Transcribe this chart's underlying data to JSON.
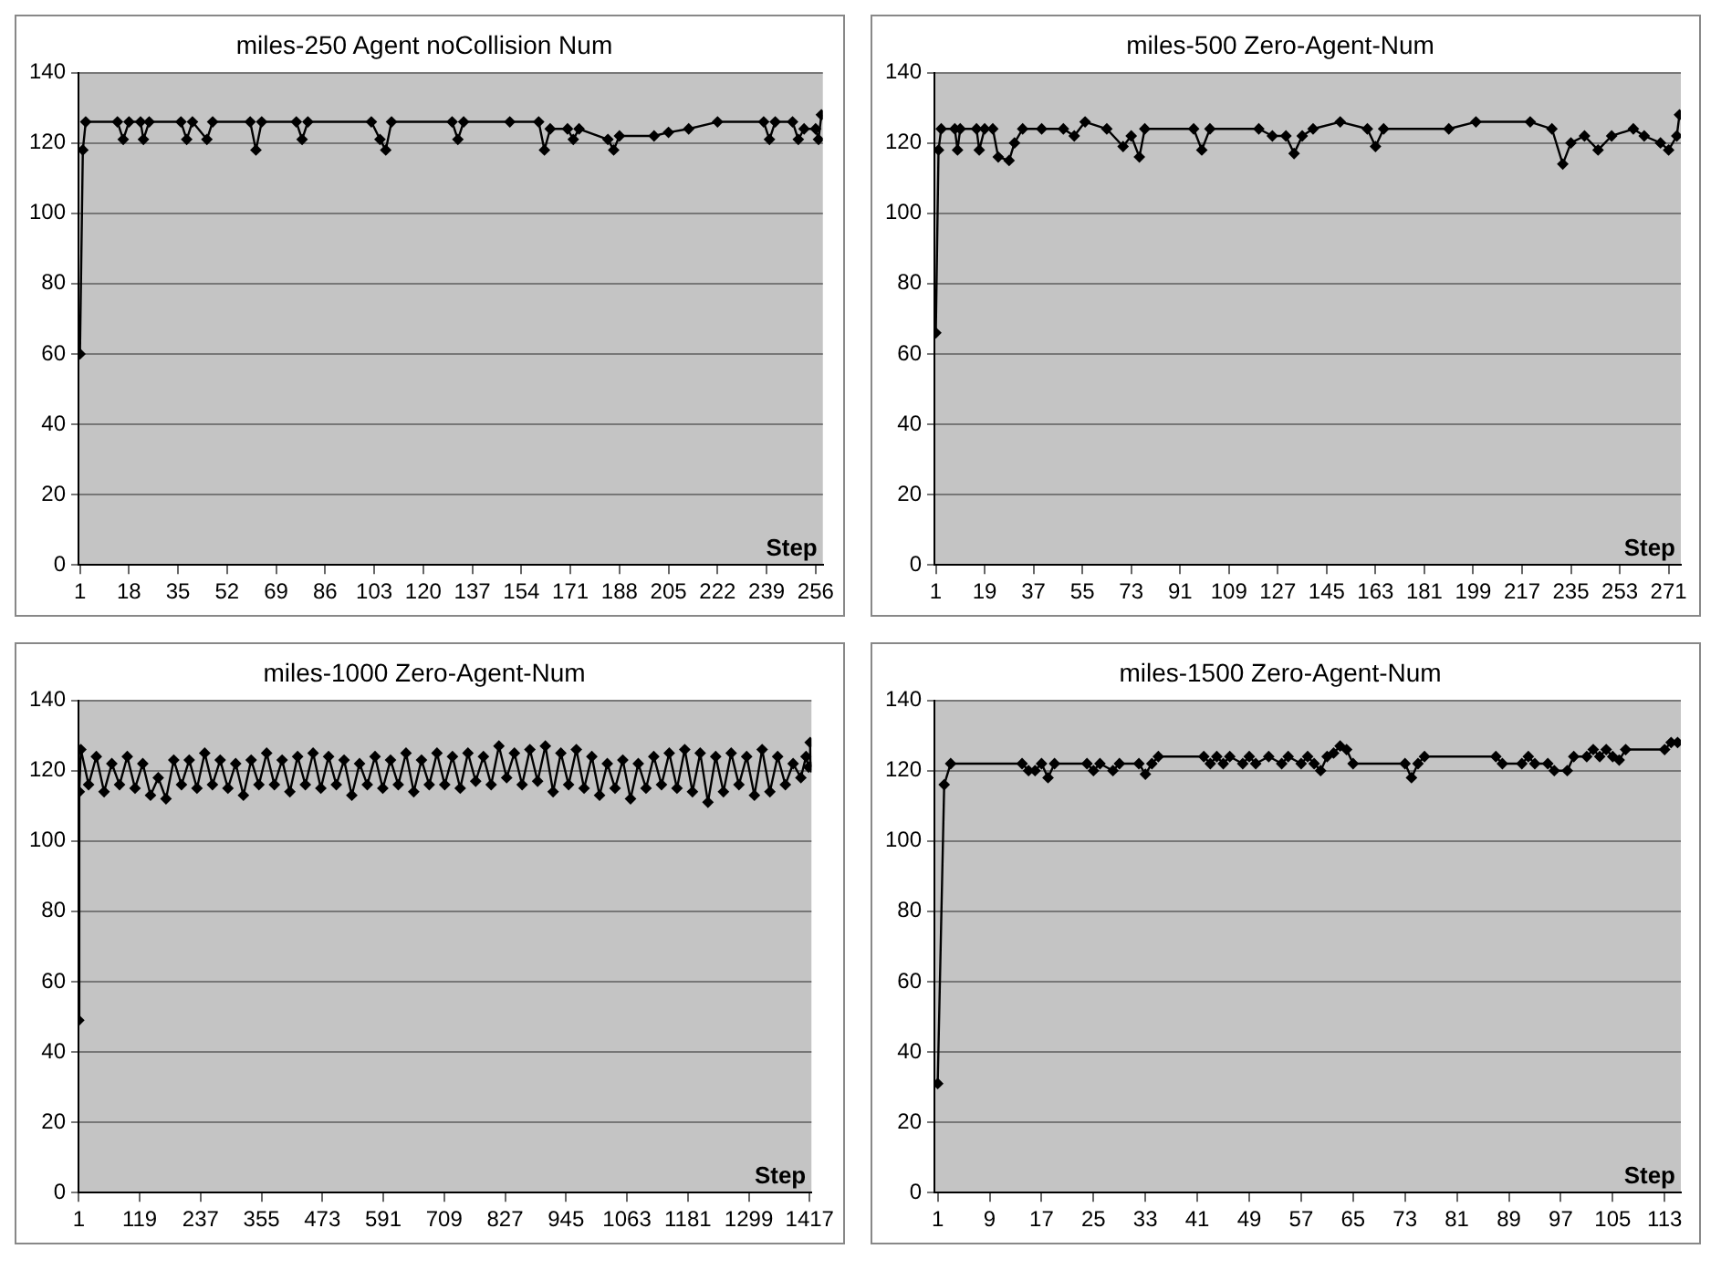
{
  "chart_data": [
    {
      "type": "line",
      "title": "miles-250 Agent noCollision Num",
      "xlabel": "Step",
      "marker": "diamond",
      "grid": "y",
      "legend": false,
      "xlim": [
        0.5,
        258.5
      ],
      "xticks": [
        1,
        18,
        35,
        52,
        69,
        86,
        103,
        120,
        137,
        154,
        171,
        188,
        205,
        222,
        239,
        256
      ],
      "ylim": [
        0,
        140
      ],
      "yticks": [
        0,
        20,
        40,
        60,
        80,
        100,
        120,
        140
      ],
      "series": [
        {
          "color": "#000000",
          "x": [
            1,
            2,
            3,
            14,
            16,
            18,
            22,
            23,
            25,
            36,
            38,
            40,
            45,
            47,
            60,
            62,
            64,
            76,
            78,
            80,
            102,
            105,
            107,
            109,
            130,
            132,
            134,
            150,
            160,
            162,
            164,
            170,
            172,
            174,
            184,
            186,
            188,
            200,
            205,
            212,
            222,
            238,
            240,
            242,
            248,
            250,
            252,
            256,
            257,
            258
          ],
          "values": [
            60,
            118,
            126,
            126,
            121,
            126,
            126,
            121,
            126,
            126,
            121,
            126,
            121,
            126,
            126,
            118,
            126,
            126,
            121,
            126,
            126,
            121,
            118,
            126,
            126,
            121,
            126,
            126,
            126,
            118,
            124,
            124,
            121,
            124,
            121,
            118,
            122,
            122,
            123,
            124,
            126,
            126,
            121,
            126,
            126,
            121,
            124,
            124,
            121,
            128
          ]
        }
      ]
    },
    {
      "type": "line",
      "title": "miles-500 Zero-Agent-Num",
      "xlabel": "Step",
      "marker": "diamond",
      "grid": "y",
      "legend": false,
      "xlim": [
        0.5,
        275.5
      ],
      "xticks": [
        1,
        19,
        37,
        55,
        73,
        91,
        109,
        127,
        145,
        163,
        181,
        199,
        217,
        235,
        253,
        271
      ],
      "ylim": [
        0,
        140
      ],
      "yticks": [
        0,
        20,
        40,
        60,
        80,
        100,
        120,
        140
      ],
      "series": [
        {
          "color": "#000000",
          "x": [
            1,
            2,
            3,
            8,
            9,
            10,
            16,
            17,
            19,
            22,
            24,
            28,
            30,
            33,
            40,
            48,
            52,
            56,
            64,
            70,
            73,
            76,
            78,
            96,
            99,
            102,
            120,
            125,
            130,
            133,
            136,
            140,
            150,
            160,
            163,
            166,
            190,
            200,
            220,
            228,
            232,
            235,
            240,
            245,
            250,
            258,
            262,
            268,
            271,
            274,
            275
          ],
          "values": [
            66,
            118,
            124,
            124,
            118,
            124,
            124,
            118,
            124,
            124,
            116,
            115,
            120,
            124,
            124,
            124,
            122,
            126,
            124,
            119,
            122,
            116,
            124,
            124,
            118,
            124,
            124,
            122,
            122,
            117,
            122,
            124,
            126,
            124,
            119,
            124,
            124,
            126,
            126,
            124,
            114,
            120,
            122,
            118,
            122,
            124,
            122,
            120,
            118,
            122,
            128
          ]
        }
      ]
    },
    {
      "type": "line",
      "title": "miles-1000 Zero-Agent-Num",
      "xlabel": "Step",
      "marker": "diamond",
      "grid": "y",
      "legend": false,
      "xlim": [
        0.5,
        1420.5
      ],
      "xticks": [
        1,
        119,
        237,
        355,
        473,
        591,
        709,
        827,
        945,
        1063,
        1181,
        1299,
        1417
      ],
      "ylim": [
        0,
        140
      ],
      "yticks": [
        0,
        20,
        40,
        60,
        80,
        100,
        120,
        140
      ],
      "series": [
        {
          "color": "#000000",
          "x": [
            1,
            2,
            5,
            20,
            35,
            50,
            65,
            80,
            95,
            110,
            125,
            140,
            155,
            170,
            185,
            200,
            215,
            230,
            245,
            260,
            275,
            290,
            305,
            320,
            335,
            350,
            365,
            380,
            395,
            410,
            425,
            440,
            455,
            470,
            485,
            500,
            515,
            530,
            545,
            560,
            575,
            590,
            605,
            620,
            635,
            650,
            665,
            680,
            695,
            710,
            725,
            740,
            755,
            770,
            785,
            800,
            815,
            830,
            845,
            860,
            875,
            890,
            905,
            920,
            935,
            950,
            965,
            980,
            995,
            1010,
            1025,
            1040,
            1055,
            1070,
            1085,
            1100,
            1115,
            1130,
            1145,
            1160,
            1175,
            1190,
            1205,
            1220,
            1235,
            1250,
            1265,
            1280,
            1295,
            1310,
            1325,
            1340,
            1355,
            1370,
            1385,
            1400,
            1410,
            1415,
            1418,
            1420
          ],
          "values": [
            49,
            114,
            126,
            116,
            124,
            114,
            122,
            116,
            124,
            115,
            122,
            113,
            118,
            112,
            123,
            116,
            123,
            115,
            125,
            116,
            123,
            115,
            122,
            113,
            123,
            116,
            125,
            116,
            123,
            114,
            124,
            116,
            125,
            115,
            124,
            116,
            123,
            113,
            122,
            116,
            124,
            115,
            123,
            116,
            125,
            114,
            123,
            116,
            125,
            116,
            124,
            115,
            125,
            117,
            124,
            116,
            127,
            118,
            125,
            116,
            126,
            117,
            127,
            114,
            125,
            116,
            126,
            115,
            124,
            113,
            122,
            115,
            123,
            112,
            122,
            115,
            124,
            116,
            125,
            115,
            126,
            114,
            125,
            111,
            124,
            114,
            125,
            116,
            124,
            113,
            126,
            114,
            124,
            116,
            122,
            118,
            124,
            121,
            128,
            121
          ]
        }
      ]
    },
    {
      "type": "line",
      "title": "miles-1500 Zero-Agent-Num",
      "xlabel": "Step",
      "marker": "diamond",
      "grid": "y",
      "legend": false,
      "xlim": [
        0.5,
        115.5
      ],
      "xticks": [
        1,
        9,
        17,
        25,
        33,
        41,
        49,
        57,
        65,
        73,
        81,
        89,
        97,
        105,
        113
      ],
      "ylim": [
        0,
        140
      ],
      "yticks": [
        0,
        20,
        40,
        60,
        80,
        100,
        120,
        140
      ],
      "series": [
        {
          "color": "#000000",
          "x": [
            1,
            2,
            3,
            14,
            15,
            16,
            17,
            18,
            19,
            24,
            25,
            26,
            28,
            29,
            32,
            33,
            34,
            35,
            42,
            43,
            44,
            45,
            46,
            48,
            49,
            50,
            52,
            54,
            55,
            57,
            58,
            59,
            60,
            61,
            62,
            63,
            64,
            65,
            73,
            74,
            75,
            76,
            87,
            88,
            91,
            92,
            93,
            95,
            96,
            98,
            99,
            101,
            102,
            103,
            104,
            105,
            106,
            107,
            113,
            114,
            115
          ],
          "values": [
            31,
            116,
            122,
            122,
            120,
            120,
            122,
            118,
            122,
            122,
            120,
            122,
            120,
            122,
            122,
            119,
            122,
            124,
            124,
            122,
            124,
            122,
            124,
            122,
            124,
            122,
            124,
            122,
            124,
            122,
            124,
            122,
            120,
            124,
            125,
            127,
            126,
            122,
            122,
            118,
            122,
            124,
            124,
            122,
            122,
            124,
            122,
            122,
            120,
            120,
            124,
            124,
            126,
            124,
            126,
            124,
            123,
            126,
            126,
            128,
            128
          ]
        }
      ]
    }
  ]
}
